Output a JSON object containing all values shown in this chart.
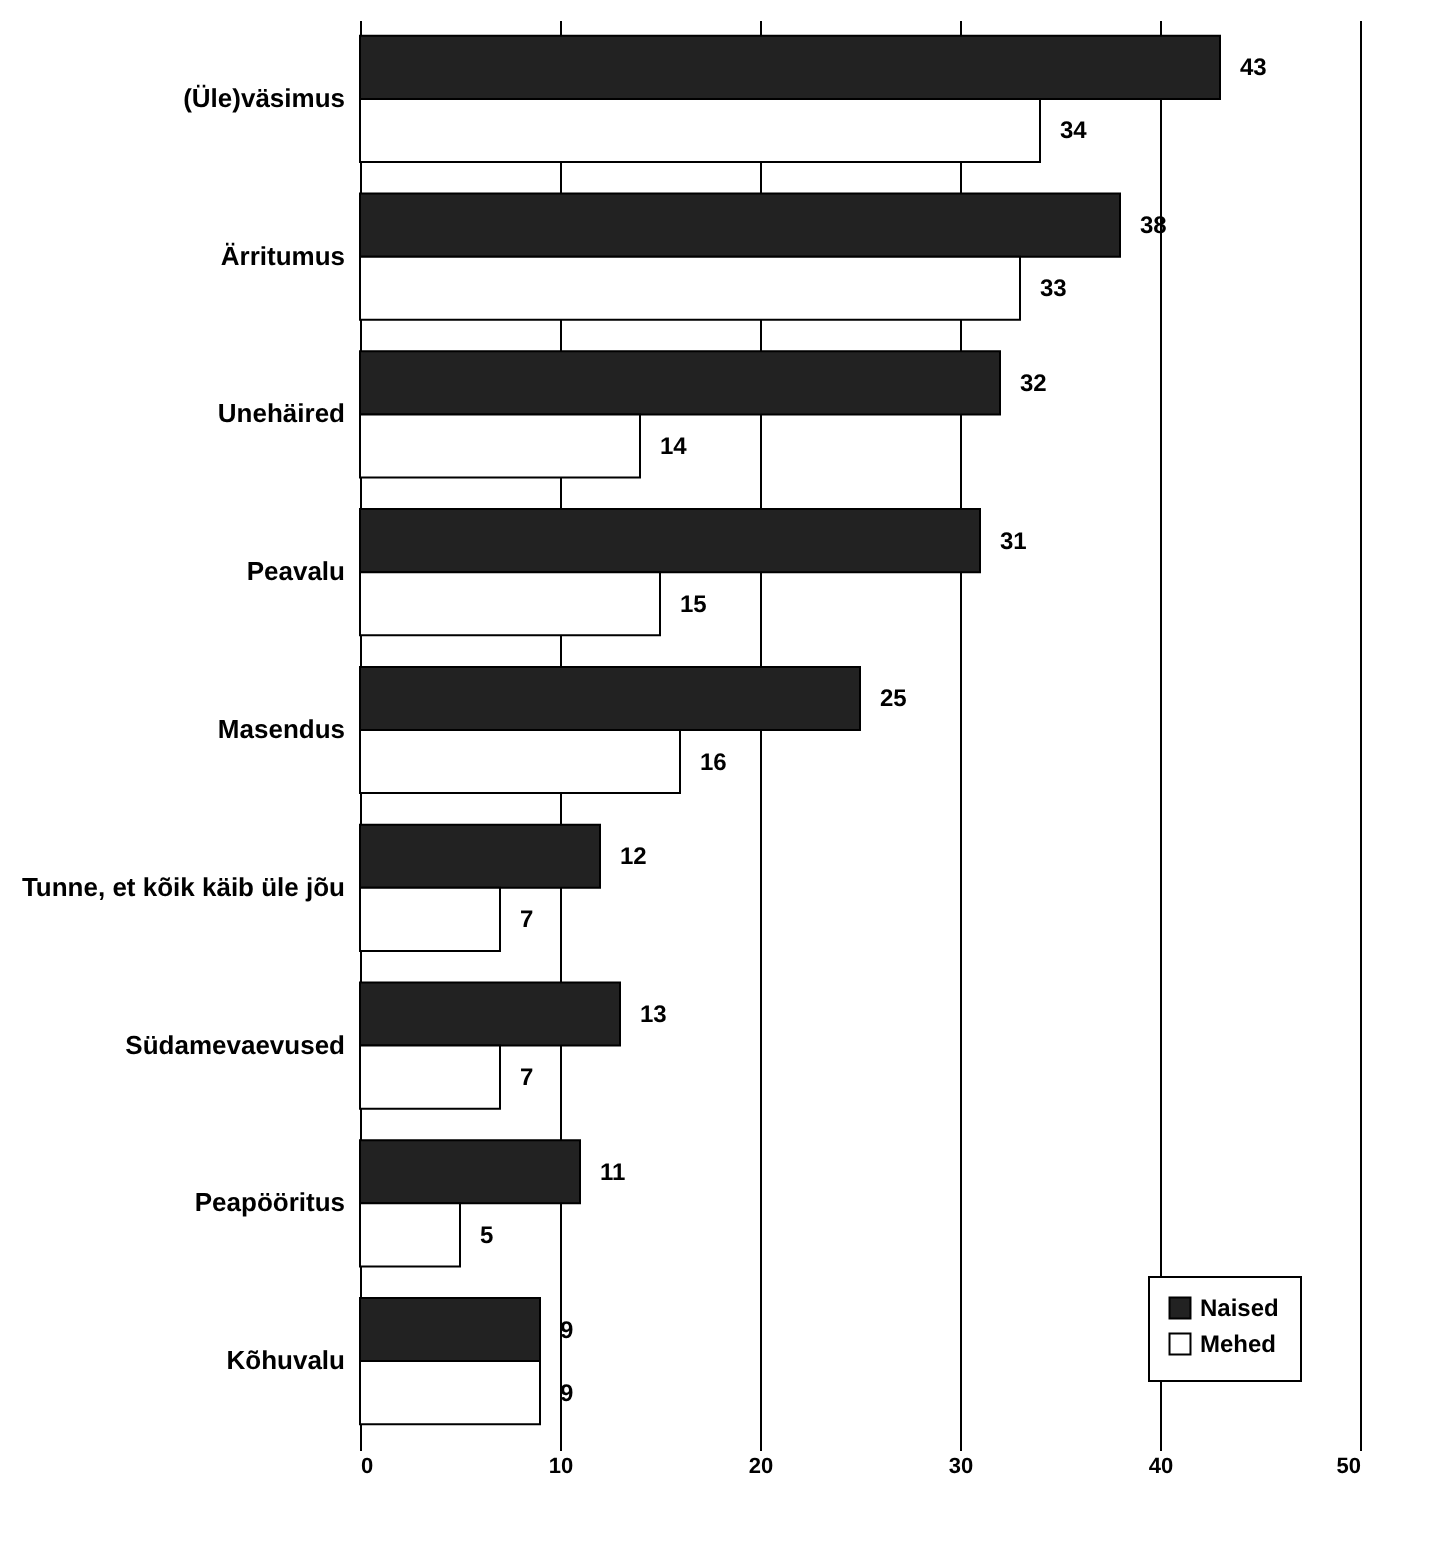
{
  "chart_data": {
    "type": "bar",
    "orientation": "horizontal",
    "categories": [
      "(Üle)väsimus",
      "Ärritumus",
      "Unehäired",
      "Peavalu",
      "Masendus",
      "Tunne, et kõik käib üle jõu",
      "Südamevaevused",
      "Peapööritus",
      "Kõhuvalu"
    ],
    "series": [
      {
        "name": "Naised",
        "color": "#222222",
        "values": [
          43,
          38,
          32,
          31,
          25,
          12,
          13,
          11,
          9
        ]
      },
      {
        "name": "Mehed",
        "color": "#ffffff",
        "values": [
          34,
          33,
          14,
          15,
          16,
          7,
          7,
          5,
          9
        ]
      }
    ],
    "xlim": [
      0,
      50
    ],
    "xticks": [
      0,
      10,
      20,
      30,
      40,
      50
    ],
    "grid": "x",
    "legend": "bottom right",
    "data_labels": true
  }
}
